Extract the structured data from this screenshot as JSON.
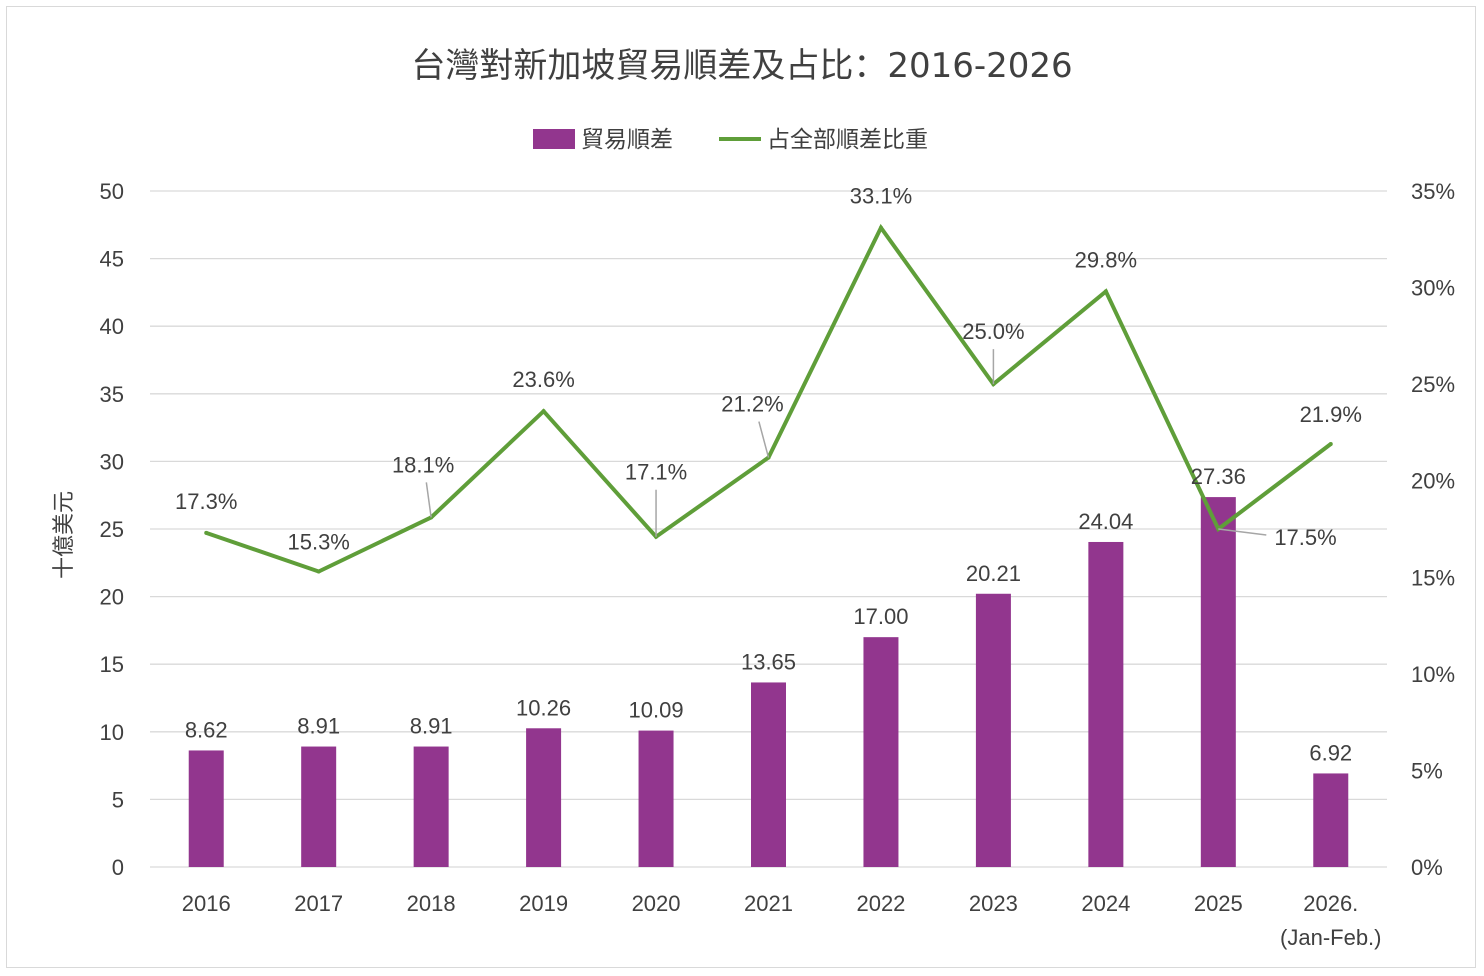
{
  "chart_data": {
    "type": "bar",
    "title": "台灣對新加坡貿易順差及占比：2016-2026",
    "categories": [
      "2016",
      "2017",
      "2018",
      "2019",
      "2020",
      "2021",
      "2022",
      "2023",
      "2024",
      "2025",
      "2026."
    ],
    "category_sublabels": {
      "2026.": "(Jan-Feb.)"
    },
    "series": [
      {
        "name": "貿易順差",
        "type": "bar",
        "axis": "left",
        "color": "#92368e",
        "values": [
          8.62,
          8.91,
          8.91,
          10.26,
          10.09,
          13.65,
          17.0,
          20.21,
          24.04,
          27.36,
          6.92
        ],
        "labels": [
          "8.62",
          "8.91",
          "8.91",
          "10.26",
          "10.09",
          "13.65",
          "17.00",
          "20.21",
          "24.04",
          "27.36",
          "6.92"
        ]
      },
      {
        "name": "占全部順差比重",
        "type": "line",
        "axis": "right",
        "color": "#5f9e39",
        "values": [
          17.3,
          15.3,
          18.1,
          23.6,
          17.1,
          21.2,
          33.1,
          25.0,
          29.8,
          17.5,
          21.9
        ],
        "labels": [
          "17.3%",
          "15.3%",
          "18.1%",
          "23.6%",
          "17.1%",
          "21.2%",
          "33.1%",
          "25.0%",
          "29.8%",
          "17.5%",
          "21.9%"
        ]
      }
    ],
    "ylabel": "十億美元",
    "ylim": [
      0,
      50
    ],
    "yticks": [
      "0",
      "5",
      "10",
      "15",
      "20",
      "25",
      "30",
      "35",
      "40",
      "45",
      "50"
    ],
    "y2lim": [
      0,
      35
    ],
    "y2ticks": [
      "0%",
      "5%",
      "10%",
      "15%",
      "20%",
      "25%",
      "30%",
      "35%"
    ],
    "grid": true,
    "legend": "top-center"
  }
}
